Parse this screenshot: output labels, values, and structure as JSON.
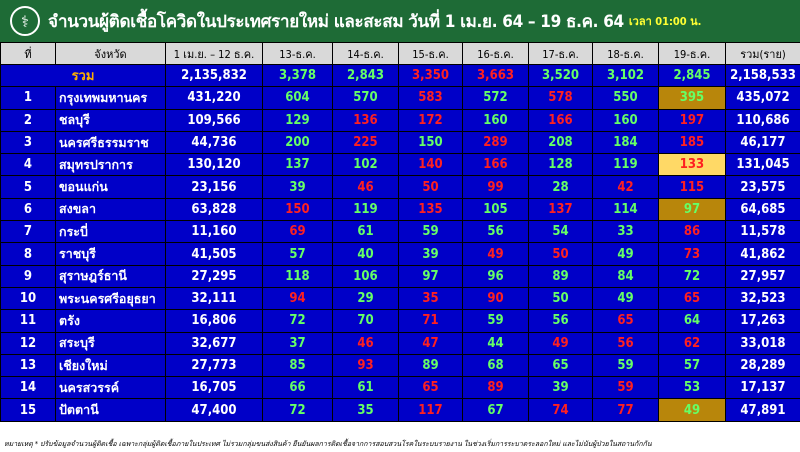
{
  "header": {
    "title": "จำนวนผู้ติดเชื้อโควิดในประเทศรายใหม่ และสะสม วันที่ 1 เม.ย. 64 – 19 ธ.ค. 64",
    "time": "เวลา 01:00 น.",
    "logo_icon": "moph-logo-icon"
  },
  "columns": [
    "ที่",
    "จังหวัด",
    "1 เม.ย. – 12 ธ.ค.",
    "13-ธ.ค.",
    "14-ธ.ค.",
    "15-ธ.ค.",
    "16-ธ.ค.",
    "17-ธ.ค.",
    "18-ธ.ค.",
    "19-ธ.ค.",
    "รวม(ราย)"
  ],
  "colors": {
    "title_bg": "#1e6b36",
    "table_bg": "#0000c8",
    "increase": "#ff2020",
    "decrease": "#66ff66",
    "label": "#ffb000",
    "highlight_gold": "#b8860b",
    "highlight_yellow": "#ffd966"
  },
  "total": {
    "label": "รวม",
    "base": "2,135,832",
    "daily": [
      "3,378",
      "2,843",
      "3,350",
      "3,663",
      "3,520",
      "3,102",
      "2,845"
    ],
    "trend": "ggrrggg",
    "sum": "2,158,533"
  },
  "rows": [
    {
      "no": "1",
      "province": "กรุงเทพมหานคร",
      "base": "431,220",
      "daily": [
        "604",
        "570",
        "583",
        "572",
        "578",
        "550",
        "395"
      ],
      "trend": "ggrgrgg",
      "highlight": "gold",
      "sum": "435,072"
    },
    {
      "no": "2",
      "province": "ชลบุรี",
      "base": "109,566",
      "daily": [
        "129",
        "136",
        "172",
        "160",
        "166",
        "160",
        "197"
      ],
      "trend": "grrgrgr",
      "sum": "110,686"
    },
    {
      "no": "3",
      "province": "นครศรีธรรมราช",
      "base": "44,736",
      "daily": [
        "200",
        "225",
        "150",
        "289",
        "208",
        "184",
        "185"
      ],
      "trend": "grgrggr",
      "sum": "46,177"
    },
    {
      "no": "4",
      "province": "สมุทรปราการ",
      "base": "130,120",
      "daily": [
        "137",
        "102",
        "140",
        "166",
        "128",
        "119",
        "133"
      ],
      "trend": "ggrrggr",
      "highlight": "yellow",
      "sum": "131,045"
    },
    {
      "no": "5",
      "province": "ขอนแก่น",
      "base": "23,156",
      "daily": [
        "39",
        "46",
        "50",
        "99",
        "28",
        "42",
        "115"
      ],
      "trend": "grrrgrr",
      "sum": "23,575"
    },
    {
      "no": "6",
      "province": "สงขลา",
      "base": "63,828",
      "daily": [
        "150",
        "119",
        "135",
        "105",
        "137",
        "114",
        "97"
      ],
      "trend": "rgrgrgg",
      "highlight": "gold",
      "sum": "64,685"
    },
    {
      "no": "7",
      "province": "กระบี่",
      "base": "11,160",
      "daily": [
        "69",
        "61",
        "59",
        "56",
        "54",
        "33",
        "86"
      ],
      "trend": "rgggggr",
      "sum": "11,578"
    },
    {
      "no": "8",
      "province": "ราชบุรี",
      "base": "41,505",
      "daily": [
        "57",
        "40",
        "39",
        "49",
        "50",
        "49",
        "73"
      ],
      "trend": "gggrrgr",
      "sum": "41,862"
    },
    {
      "no": "9",
      "province": "สุราษฎร์ธานี",
      "base": "27,295",
      "daily": [
        "118",
        "106",
        "97",
        "96",
        "89",
        "84",
        "72"
      ],
      "trend": "ggggggg",
      "sum": "27,957"
    },
    {
      "no": "10",
      "province": "พระนครศรีอยุธยา",
      "base": "32,111",
      "daily": [
        "94",
        "29",
        "35",
        "90",
        "50",
        "49",
        "65"
      ],
      "trend": "rgrrggr",
      "sum": "32,523"
    },
    {
      "no": "11",
      "province": "ตรัง",
      "base": "16,806",
      "daily": [
        "72",
        "70",
        "71",
        "59",
        "56",
        "65",
        "64"
      ],
      "trend": "ggrggrg",
      "sum": "17,263"
    },
    {
      "no": "12",
      "province": "สระบุรี",
      "base": "32,677",
      "daily": [
        "37",
        "46",
        "47",
        "44",
        "49",
        "56",
        "62"
      ],
      "trend": "grrgrrr",
      "sum": "33,018"
    },
    {
      "no": "13",
      "province": "เชียงใหม่",
      "base": "27,773",
      "daily": [
        "85",
        "93",
        "89",
        "68",
        "65",
        "59",
        "57"
      ],
      "trend": "grggggg",
      "sum": "28,289"
    },
    {
      "no": "14",
      "province": "นครสวรรค์",
      "base": "16,705",
      "daily": [
        "66",
        "61",
        "65",
        "89",
        "39",
        "59",
        "53"
      ],
      "trend": "ggrrgrg",
      "sum": "17,137"
    },
    {
      "no": "15",
      "province": "ปัตตานี",
      "base": "47,400",
      "daily": [
        "72",
        "35",
        "117",
        "67",
        "74",
        "77",
        "49"
      ],
      "trend": "ggrgrrg",
      "highlight": "gold",
      "sum": "47,891"
    }
  ],
  "footnote": "หมายเหตุ * ปรับข้อมูลจำนวนผู้ติดเชื้อ เฉพาะกลุ่มผู้ติดเชื้อภายในประเทศ ไม่รวมกลุ่มขนส่งสินค้า ยืนยันผลการติดเชื้อจากการสอบสวนโรคในระบบรายงาน ในช่วงเริ่มการระบาดระลอกใหม่ และไม่นับผู้ป่วยในสถานกักกัน"
}
